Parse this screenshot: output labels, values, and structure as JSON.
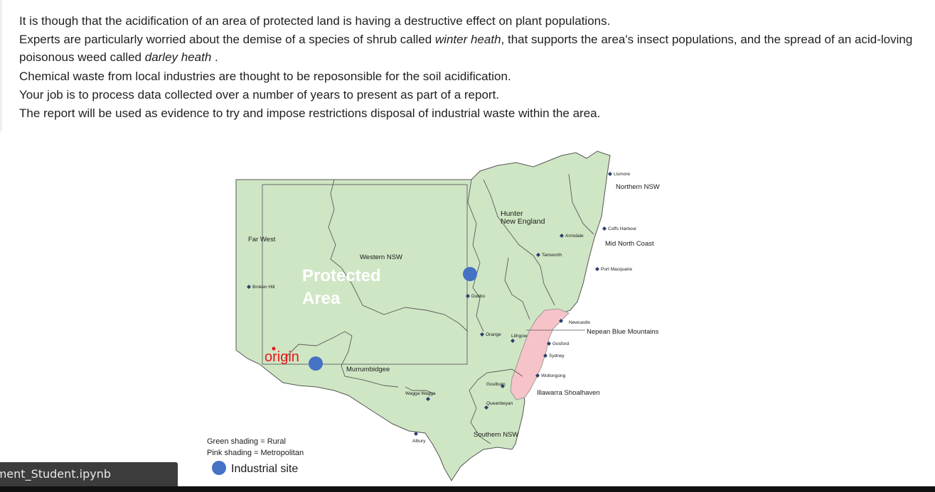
{
  "intro": {
    "line1": "It is though that the acidification of an area of protected land is having a destructive effect on plant populations.",
    "line2_before": "Experts are particularly worried about the demise of a species of shrub called ",
    "line2_species": "winter heath",
    "line2_after": ", that supports the area's insect populations, and the spread of an acid-loving poisonous weed called ",
    "line2_weed": "darley heath",
    "line2_end": " .",
    "line3": "Chemical waste from local industries are thought to be reposonsible for the soil acidification.",
    "line4": "Your job is to process data collected over a number of years to present as part of a report.",
    "line5": "The report will be used as evidence to try and impose restrictions disposal of industrial waste within the area."
  },
  "map": {
    "regions": {
      "far_west": "Far West",
      "western_nsw": "Western NSW",
      "hunter": "Hunter",
      "new_england": "New England",
      "northern_nsw": "Northern NSW",
      "mid_north_coast": "Mid North Coast",
      "nepean": "Nepean Blue Mountains",
      "illawarra": "Illawarra Shoalhaven",
      "murrumbidgee": "Murrumbidgee",
      "southern_nsw": "Southern NSW"
    },
    "towns": {
      "lismore": "Lismore",
      "coffs": "Coffs Harbour",
      "armidale": "Armidale",
      "tamworth": "Tamworth",
      "port_macquarie": "Port Macquarie",
      "broken_hill": "Broken Hill",
      "dubbo": "Dubbo",
      "newcastle": "Newcastle",
      "orange": "Orange",
      "lithgow": "Lithgow",
      "gosford": "Gosford",
      "sydney": "Sydney",
      "wollongong": "Wollongong",
      "goulburn": "Goulburn",
      "wagga": "Wagga Wagga",
      "queanbeyan": "Queanbeyan",
      "albury": "Albury"
    },
    "protected_line1": "Protected",
    "protected_line2": "Area",
    "origin": "origin",
    "legend": {
      "green": "Green shading = Rural",
      "pink": "Pink shading = Metropolitan",
      "industrial": "Industrial site"
    },
    "colors": {
      "rural": "#cfe6c5",
      "metro": "#f6c4c8",
      "industrial": "#4472c4",
      "origin": "#e8141c"
    }
  },
  "tab": {
    "filename": "ment_Student.ipynb"
  }
}
